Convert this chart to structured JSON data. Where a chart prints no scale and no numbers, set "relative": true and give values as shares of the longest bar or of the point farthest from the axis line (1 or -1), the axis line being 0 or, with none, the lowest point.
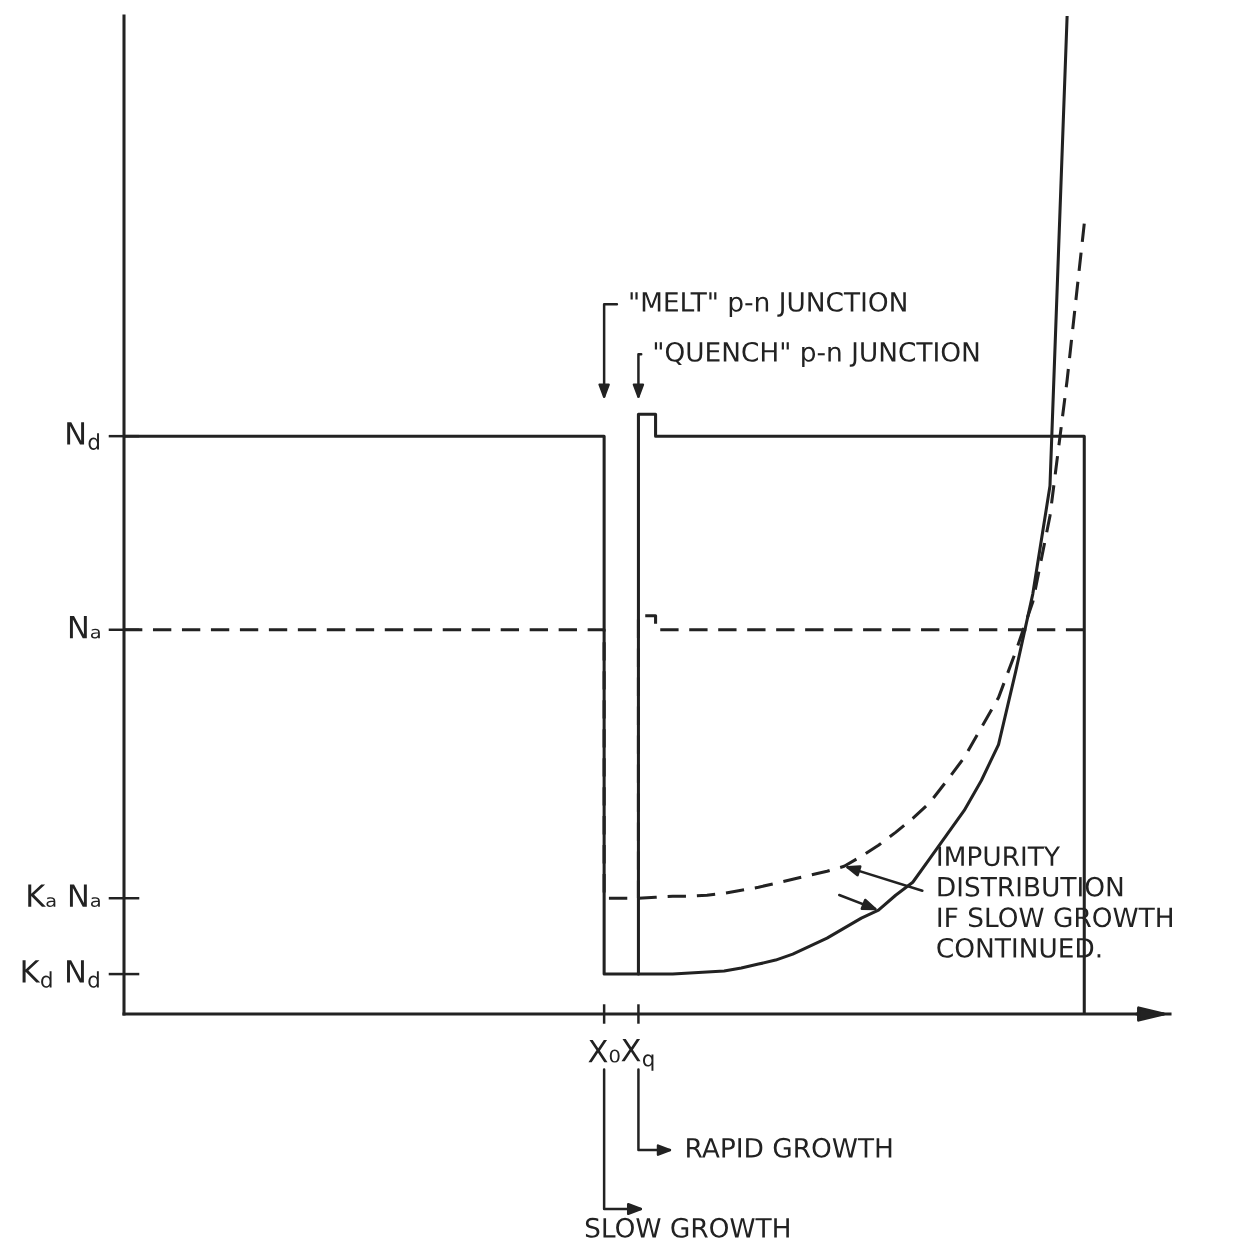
{
  "chart_data": {
    "type": "line",
    "relative": true,
    "categories": [
      null,
      null,
      null,
      null,
      null,
      null,
      null,
      null,
      null,
      null,
      null,
      null,
      null,
      null,
      null,
      null,
      null,
      null,
      null,
      null,
      null,
      null,
      null,
      null,
      null,
      null,
      null,
      null,
      "X₀",
      null,
      "X$_{q}$",
      null,
      null,
      null,
      null,
      null,
      null,
      null,
      null,
      null,
      null,
      null,
      null,
      null,
      null,
      null,
      null,
      null,
      null,
      null,
      null,
      null,
      null,
      null,
      null,
      null,
      null,
      null,
      null,
      null,
      null,
      null
    ],
    "series": [
      {
        "type": "step",
        "color": "#222222",
        "line_style": "solid",
        "values": [
          0.579,
          0.579,
          0.579,
          0.579,
          0.579,
          0.579,
          0.579,
          0.579,
          0.579,
          0.579,
          0.579,
          0.579,
          0.579,
          0.579,
          0.579,
          0.579,
          0.579,
          0.579,
          0.579,
          0.579,
          0.579,
          0.579,
          0.579,
          0.579,
          0.579,
          0.579,
          0.579,
          0.579,
          0.04,
          0.04,
          0.601,
          0.579,
          0.579,
          0.579,
          0.579,
          0.579,
          0.579,
          0.579,
          0.579,
          0.579,
          0.579,
          0.579,
          0.579,
          0.579,
          0.579,
          0.579,
          0.579,
          0.579,
          0.579,
          0.579,
          0.579,
          0.579,
          0.579,
          0.579,
          0.579,
          0.579,
          0,
          null,
          null,
          null,
          null,
          null
        ]
      },
      {
        "color": "#222222",
        "line_style": "solid",
        "values": [
          null,
          null,
          null,
          null,
          null,
          null,
          null,
          null,
          null,
          null,
          null,
          null,
          null,
          null,
          null,
          null,
          null,
          null,
          null,
          null,
          null,
          null,
          null,
          null,
          null,
          null,
          null,
          null,
          null,
          null,
          0.04,
          0.04,
          0.04,
          0.041,
          0.042,
          0.043,
          0.046,
          0.05,
          0.054,
          0.06,
          0.068,
          0.076,
          0.086,
          0.096,
          0.104,
          0.119,
          0.132,
          0.156,
          0.18,
          0.204,
          0.234,
          0.27,
          0.343,
          0.421,
          0.529,
          1.0,
          null,
          null,
          null,
          null,
          null,
          null
        ]
      },
      {
        "type": "step",
        "color": "#222222",
        "line_style": "dashed",
        "values": [
          0.385,
          0.385,
          0.385,
          0.385,
          0.385,
          0.385,
          0.385,
          0.385,
          0.385,
          0.385,
          0.385,
          0.385,
          0.385,
          0.385,
          0.385,
          0.385,
          0.385,
          0.385,
          0.385,
          0.385,
          0.385,
          0.385,
          0.385,
          0.385,
          0.385,
          0.385,
          0.385,
          0.385,
          0.116,
          0.116,
          0.399,
          0.385,
          0.385,
          0.385,
          0.385,
          0.385,
          0.385,
          0.385,
          0.385,
          0.385,
          0.385,
          0.385,
          0.385,
          0.385,
          0.385,
          0.385,
          0.385,
          0.385,
          0.385,
          0.385,
          0.385,
          0.385,
          0.385,
          0.385,
          0.385,
          0.385,
          0.385,
          null,
          null,
          null,
          null,
          null
        ]
      },
      {
        "color": "#222222",
        "line_style": "dashed",
        "values": [
          null,
          null,
          null,
          null,
          null,
          null,
          null,
          null,
          null,
          null,
          null,
          null,
          null,
          null,
          null,
          null,
          null,
          null,
          null,
          null,
          null,
          null,
          null,
          null,
          null,
          null,
          null,
          null,
          null,
          null,
          0.116,
          0.117,
          0.118,
          0.118,
          0.119,
          0.121,
          0.124,
          0.127,
          0.131,
          0.135,
          0.139,
          0.143,
          0.148,
          0.158,
          0.169,
          0.182,
          0.196,
          0.212,
          0.234,
          0.257,
          0.287,
          0.317,
          0.363,
          0.413,
          0.499,
          0.635,
          0.792,
          null,
          null,
          null,
          null,
          null
        ]
      }
    ],
    "annotations": [
      "N$_{d}$",
      "Nₐ",
      "Kₐ Nₐ",
      "K$_{d}$ N$_{d}$",
      "\"MELT\" p-n JUNCTION",
      "\"QUENCH\" p-n JUNCTION",
      "IMPURITY\nDISTRIBUTION\nIF SLOW GROWTH\nCONTINUED.",
      "RAPID GROWTH",
      "SLOW GROWTH"
    ]
  }
}
